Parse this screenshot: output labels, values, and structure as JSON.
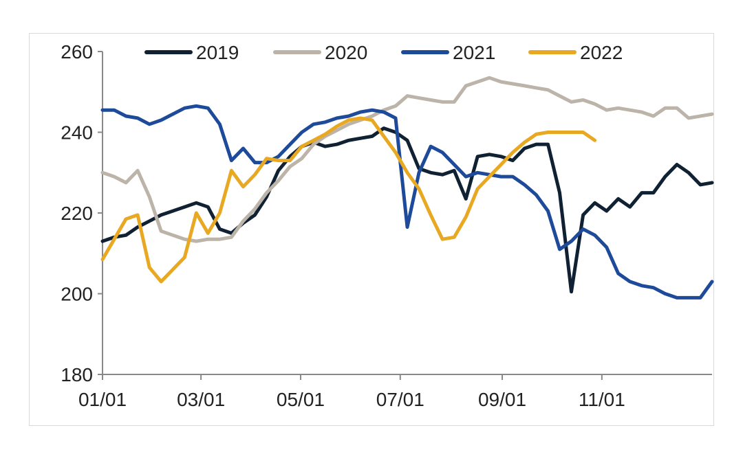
{
  "chart_data": {
    "type": "line",
    "title": "",
    "xlabel": "",
    "ylabel": "",
    "ylim": [
      180,
      260
    ],
    "yticks": [
      180,
      200,
      220,
      240,
      260
    ],
    "x_axis": {
      "unit": "week of year",
      "range": [
        1,
        53
      ]
    },
    "xtick_labels": [
      "01/01",
      "03/01",
      "05/01",
      "07/01",
      "09/01",
      "11/01"
    ],
    "xtick_weeks": [
      1,
      9.4,
      17.9,
      26.4,
      35.1,
      43.6
    ],
    "grid": false,
    "legend_position": "top",
    "series": [
      {
        "name": "2019",
        "color": "#0f2133",
        "points": [
          [
            1,
            213
          ],
          [
            2,
            214
          ],
          [
            3,
            214.5
          ],
          [
            4,
            216.5
          ],
          [
            5,
            218
          ],
          [
            6,
            219.5
          ],
          [
            7,
            220.5
          ],
          [
            8,
            221.5
          ],
          [
            9,
            222.5
          ],
          [
            10,
            221.5
          ],
          [
            11,
            216
          ],
          [
            12,
            215
          ],
          [
            13,
            217.5
          ],
          [
            14,
            219.5
          ],
          [
            15,
            224
          ],
          [
            16,
            230.5
          ],
          [
            17,
            234
          ],
          [
            18,
            236.5
          ],
          [
            19,
            237.5
          ],
          [
            20,
            236.5
          ],
          [
            21,
            237
          ],
          [
            22,
            238
          ],
          [
            23,
            238.5
          ],
          [
            24,
            239
          ],
          [
            25,
            241
          ],
          [
            26,
            240
          ],
          [
            27,
            238
          ],
          [
            28,
            231
          ],
          [
            29,
            230
          ],
          [
            30,
            229.5
          ],
          [
            31,
            230.5
          ],
          [
            32,
            223.5
          ],
          [
            33,
            234
          ],
          [
            34,
            234.5
          ],
          [
            35,
            234
          ],
          [
            36,
            233
          ],
          [
            37,
            236
          ],
          [
            38,
            237
          ],
          [
            39,
            237
          ],
          [
            40,
            225
          ],
          [
            41,
            200.5
          ],
          [
            42,
            219.5
          ],
          [
            43,
            222.5
          ],
          [
            44,
            220.5
          ],
          [
            45,
            223.5
          ],
          [
            46,
            221.5
          ],
          [
            47,
            225
          ],
          [
            48,
            225
          ],
          [
            49,
            229
          ],
          [
            50,
            232
          ],
          [
            51,
            230
          ],
          [
            52,
            227
          ],
          [
            53,
            227.5
          ]
        ]
      },
      {
        "name": "2020",
        "color": "#bcb3a9",
        "points": [
          [
            1,
            230
          ],
          [
            2,
            229
          ],
          [
            3,
            227.5
          ],
          [
            4,
            230.5
          ],
          [
            5,
            224
          ],
          [
            6,
            215.5
          ],
          [
            7,
            214.5
          ],
          [
            8,
            213.5
          ],
          [
            9,
            213
          ],
          [
            10,
            213.5
          ],
          [
            11,
            213.5
          ],
          [
            12,
            214
          ],
          [
            13,
            218
          ],
          [
            14,
            221
          ],
          [
            15,
            225
          ],
          [
            16,
            228
          ],
          [
            17,
            231.5
          ],
          [
            18,
            233.5
          ],
          [
            19,
            237
          ],
          [
            20,
            239
          ],
          [
            21,
            240.5
          ],
          [
            22,
            242
          ],
          [
            23,
            243
          ],
          [
            24,
            244
          ],
          [
            25,
            245.5
          ],
          [
            26,
            246.5
          ],
          [
            27,
            249
          ],
          [
            28,
            248.5
          ],
          [
            29,
            248
          ],
          [
            30,
            247.5
          ],
          [
            31,
            247.5
          ],
          [
            32,
            251.5
          ],
          [
            33,
            252.5
          ],
          [
            34,
            253.5
          ],
          [
            35,
            252.5
          ],
          [
            36,
            252
          ],
          [
            37,
            251.5
          ],
          [
            38,
            251
          ],
          [
            39,
            250.5
          ],
          [
            40,
            249
          ],
          [
            41,
            247.5
          ],
          [
            42,
            248
          ],
          [
            43,
            247
          ],
          [
            44,
            245.5
          ],
          [
            45,
            246
          ],
          [
            46,
            245.5
          ],
          [
            47,
            245
          ],
          [
            48,
            244
          ],
          [
            49,
            246
          ],
          [
            50,
            246
          ],
          [
            51,
            243.5
          ],
          [
            52,
            244
          ],
          [
            53,
            244.5
          ]
        ]
      },
      {
        "name": "2021",
        "color": "#1e4a9a",
        "points": [
          [
            1,
            245.5
          ],
          [
            2,
            245.5
          ],
          [
            3,
            244
          ],
          [
            4,
            243.5
          ],
          [
            5,
            242
          ],
          [
            6,
            243
          ],
          [
            7,
            244.5
          ],
          [
            8,
            246
          ],
          [
            9,
            246.5
          ],
          [
            10,
            246
          ],
          [
            11,
            242
          ],
          [
            12,
            233
          ],
          [
            13,
            236
          ],
          [
            14,
            232.5
          ],
          [
            15,
            232.5
          ],
          [
            16,
            234
          ],
          [
            17,
            237
          ],
          [
            18,
            240
          ],
          [
            19,
            242
          ],
          [
            20,
            242.5
          ],
          [
            21,
            243.5
          ],
          [
            22,
            244
          ],
          [
            23,
            245
          ],
          [
            24,
            245.5
          ],
          [
            25,
            245
          ],
          [
            26,
            243.5
          ],
          [
            27,
            216.5
          ],
          [
            28,
            230
          ],
          [
            29,
            236.5
          ],
          [
            30,
            235
          ],
          [
            31,
            232
          ],
          [
            32,
            229
          ],
          [
            33,
            230
          ],
          [
            34,
            229.5
          ],
          [
            35,
            229
          ],
          [
            36,
            229
          ],
          [
            37,
            227
          ],
          [
            38,
            224.5
          ],
          [
            39,
            220.5
          ],
          [
            40,
            211
          ],
          [
            41,
            213
          ],
          [
            42,
            216
          ],
          [
            43,
            214.5
          ],
          [
            44,
            211.5
          ],
          [
            45,
            205
          ],
          [
            46,
            203
          ],
          [
            47,
            202
          ],
          [
            48,
            201.5
          ],
          [
            49,
            200
          ],
          [
            50,
            199
          ],
          [
            51,
            199
          ],
          [
            52,
            199
          ],
          [
            53,
            203
          ]
        ]
      },
      {
        "name": "2022",
        "color": "#e8a822",
        "points": [
          [
            1,
            208.5
          ],
          [
            2,
            213.5
          ],
          [
            3,
            218.5
          ],
          [
            4,
            219.5
          ],
          [
            5,
            206.5
          ],
          [
            6,
            203
          ],
          [
            7,
            206
          ],
          [
            8,
            209
          ],
          [
            9,
            220
          ],
          [
            10,
            215
          ],
          [
            11,
            220
          ],
          [
            12,
            230.5
          ],
          [
            13,
            226.5
          ],
          [
            14,
            229.5
          ],
          [
            15,
            233.5
          ],
          [
            16,
            233
          ],
          [
            17,
            233
          ],
          [
            18,
            236.5
          ],
          [
            19,
            238
          ],
          [
            20,
            239.5
          ],
          [
            21,
            241.5
          ],
          [
            22,
            243
          ],
          [
            23,
            243.5
          ],
          [
            24,
            243
          ],
          [
            25,
            239
          ],
          [
            26,
            235
          ],
          [
            27,
            230
          ],
          [
            28,
            226
          ],
          [
            29,
            219.5
          ],
          [
            30,
            213.5
          ],
          [
            31,
            214
          ],
          [
            32,
            219
          ],
          [
            33,
            226
          ],
          [
            34,
            229
          ],
          [
            35,
            232
          ],
          [
            36,
            235
          ],
          [
            37,
            237.5
          ],
          [
            38,
            239.5
          ],
          [
            39,
            240
          ],
          [
            40,
            240
          ],
          [
            41,
            240
          ],
          [
            42,
            240
          ],
          [
            43,
            238
          ]
        ]
      }
    ]
  }
}
